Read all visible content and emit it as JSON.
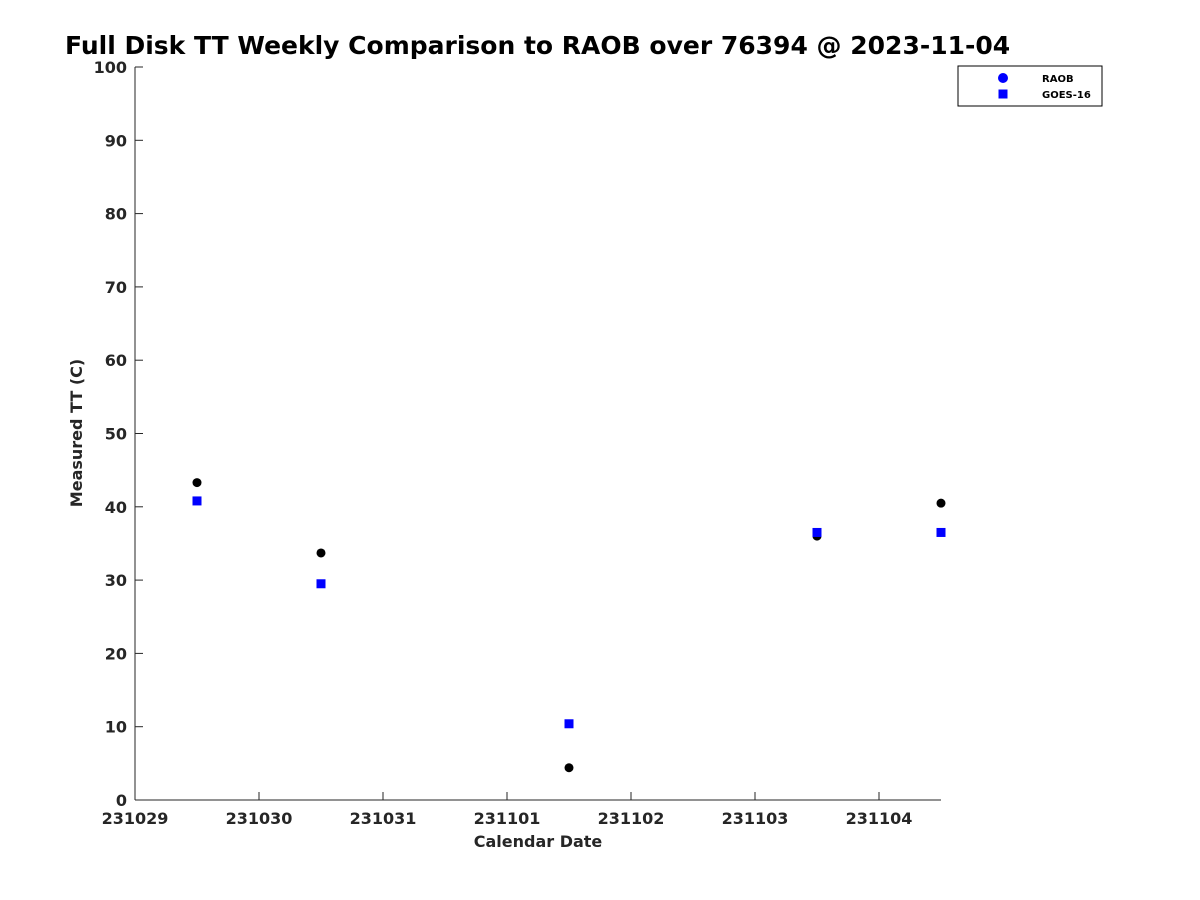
{
  "chart_data": {
    "type": "scatter",
    "title": "Full Disk TT Weekly Comparison to RAOB over 76394 @ 2023-11-04",
    "xlabel": "Calendar Date",
    "ylabel": "Measured TT (C)",
    "xlim": [
      "2023-10-29",
      "2023-11-04T12:00"
    ],
    "ylim": [
      0,
      100
    ],
    "x_ticks": [
      "231029",
      "231030",
      "231031",
      "231101",
      "231102",
      "231103",
      "231104"
    ],
    "y_ticks": [
      "0",
      "10",
      "20",
      "30",
      "40",
      "50",
      "60",
      "70",
      "80",
      "90",
      "100"
    ],
    "grid": false,
    "legend_position": "top-right",
    "series": [
      {
        "name": "RAOB",
        "marker": "circle",
        "color": "#000000",
        "legend_color": "#0000ff",
        "points": [
          {
            "x": "2023-10-29T12:00",
            "y": 43.3
          },
          {
            "x": "2023-10-30T12:00",
            "y": 33.7
          },
          {
            "x": "2023-11-01T12:00",
            "y": 4.4
          },
          {
            "x": "2023-11-03T12:00",
            "y": 36.0
          },
          {
            "x": "2023-11-04T12:00",
            "y": 40.5
          }
        ]
      },
      {
        "name": "GOES-16",
        "marker": "square",
        "color": "#0000ff",
        "legend_color": "#0000ff",
        "points": [
          {
            "x": "2023-10-29T12:00",
            "y": 40.8
          },
          {
            "x": "2023-10-30T12:00",
            "y": 29.5
          },
          {
            "x": "2023-11-01T12:00",
            "y": 10.4
          },
          {
            "x": "2023-11-03T12:00",
            "y": 36.5
          },
          {
            "x": "2023-11-04T12:00",
            "y": 36.5
          }
        ]
      }
    ]
  }
}
